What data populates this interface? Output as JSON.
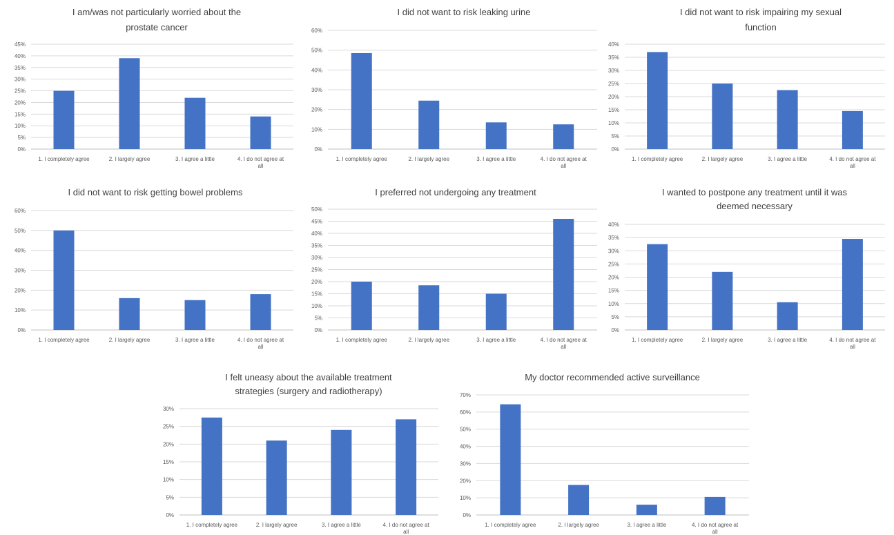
{
  "chart_data": [
    {
      "type": "bar",
      "title": [
        "I am/was not particularly worried about the",
        "prostate cancer"
      ],
      "categories": [
        "1. I completely agree",
        "2. I largely agree",
        "3. I agree a little",
        "4. I do not agree at all"
      ],
      "values": [
        25,
        39,
        22,
        14
      ],
      "ylim": [
        0,
        45
      ],
      "yticks": [
        "0%",
        "5%",
        "10%",
        "15%",
        "20%",
        "25%",
        "30%",
        "35%",
        "40%",
        "45%"
      ],
      "grid": true
    },
    {
      "type": "bar",
      "title": [
        "I did not want to risk leaking urine"
      ],
      "categories": [
        "1. I completely agree",
        "2. I largely agree",
        "3. I agree a little",
        "4. I do not agree at all"
      ],
      "values": [
        48.5,
        24.5,
        13.5,
        12.5
      ],
      "ylim": [
        0,
        60
      ],
      "yticks": [
        "0%",
        "10%",
        "20%",
        "30%",
        "40%",
        "50%",
        "60%"
      ],
      "grid": true
    },
    {
      "type": "bar",
      "title": [
        "I did not want to risk impairing my sexual",
        "function"
      ],
      "categories": [
        "1. I completely agree",
        "2. I largely agree",
        "3. I agree a little",
        "4. I do not agree at all"
      ],
      "values": [
        37,
        25,
        22.5,
        14.5
      ],
      "ylim": [
        0,
        40
      ],
      "yticks": [
        "0%",
        "5%",
        "10%",
        "15%",
        "20%",
        "25%",
        "30%",
        "35%",
        "40%"
      ],
      "grid": true
    },
    {
      "type": "bar",
      "title": [
        "I did not want to risk getting bowel problems"
      ],
      "categories": [
        "1. I completely agree",
        "2. I largely agree",
        "3. I agree a little",
        "4. I do not agree at all"
      ],
      "values": [
        50,
        16,
        15,
        18
      ],
      "ylim": [
        0,
        60
      ],
      "yticks": [
        "0%",
        "10%",
        "20%",
        "30%",
        "40%",
        "50%",
        "60%"
      ],
      "grid": true
    },
    {
      "type": "bar",
      "title": [
        "I preferred not undergoing any treatment"
      ],
      "categories": [
        "1. I completely agree",
        "2. I largely agree",
        "3. I agree a little",
        "4. I do not agree at all"
      ],
      "values": [
        20,
        18.5,
        15,
        46
      ],
      "ylim": [
        0,
        50
      ],
      "yticks": [
        "0%",
        "5%",
        "10%",
        "15%",
        "20%",
        "25%",
        "30%",
        "35%",
        "40%",
        "45%",
        "50%"
      ],
      "grid": true
    },
    {
      "type": "bar",
      "title": [
        "I wanted to postpone any treatment until it was",
        "deemed necessary"
      ],
      "categories": [
        "1. I completely agree",
        "2. I largely agree",
        "3. I agree a little",
        "4. I do not agree at all"
      ],
      "values": [
        32.5,
        22,
        10.5,
        34.5
      ],
      "ylim": [
        0,
        40
      ],
      "yticks": [
        "0%",
        "5%",
        "10%",
        "15%",
        "20%",
        "25%",
        "30%",
        "35%",
        "40%"
      ],
      "grid": true
    },
    {
      "type": "bar",
      "title": [
        "I felt uneasy about the available treatment",
        "strategies (surgery and radiotherapy)"
      ],
      "categories": [
        "1. I completely agree",
        "2. I largely agree",
        "3. I agree a little",
        "4. I do not agree at all"
      ],
      "values": [
        27.5,
        21,
        24,
        27
      ],
      "ylim": [
        0,
        30
      ],
      "yticks": [
        "0%",
        "5%",
        "10%",
        "15%",
        "20%",
        "25%",
        "30%"
      ],
      "grid": true
    },
    {
      "type": "bar",
      "title": [
        "My doctor recommended active surveillance"
      ],
      "categories": [
        "1. I completely agree",
        "2. I largely agree",
        "3. I agree a little",
        "4. I do not agree at all"
      ],
      "values": [
        64.5,
        17.5,
        6,
        10.5
      ],
      "ylim": [
        0,
        70
      ],
      "yticks": [
        "0%",
        "10%",
        "20%",
        "30%",
        "40%",
        "50%",
        "60%",
        "70%"
      ],
      "grid": true
    }
  ],
  "colors": {
    "bar": "#4472c4"
  }
}
